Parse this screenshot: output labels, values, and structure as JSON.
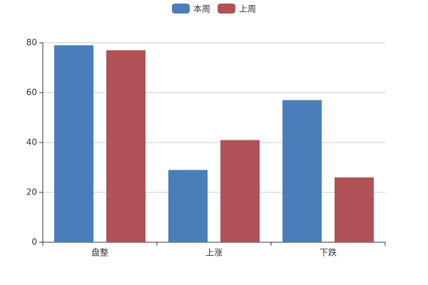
{
  "chart_data": {
    "type": "bar",
    "categories": [
      "盘整",
      "上涨",
      "下跌"
    ],
    "series": [
      {
        "name": "本周",
        "color": "#4a7ebb",
        "values": [
          79,
          29,
          57
        ]
      },
      {
        "name": "上周",
        "color": "#b05258",
        "values": [
          77,
          41,
          26
        ]
      }
    ],
    "ylim": [
      0,
      80
    ],
    "yticks": [
      0,
      20,
      40,
      60,
      80
    ],
    "grid": true,
    "legend": "top"
  }
}
